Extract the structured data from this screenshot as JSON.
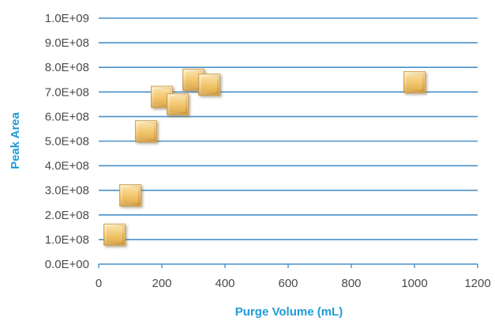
{
  "chart_data": {
    "type": "scatter",
    "title": "",
    "xlabel": "Purge Volume (mL)",
    "ylabel": "Peak Area",
    "xlim": [
      0,
      1200
    ],
    "ylim": [
      0,
      1000000000
    ],
    "x_ticks": [
      0,
      200,
      400,
      600,
      800,
      1000,
      1200
    ],
    "x_tick_labels": [
      "0",
      "200",
      "400",
      "600",
      "800",
      "1000",
      "1200"
    ],
    "y_ticks": [
      0,
      100000000,
      200000000,
      300000000,
      400000000,
      500000000,
      600000000,
      700000000,
      800000000,
      900000000,
      1000000000
    ],
    "y_tick_labels": [
      "0.0E+00",
      "1.0E+08",
      "2.0E+08",
      "3.0E+08",
      "4.0E+08",
      "5.0E+08",
      "6.0E+08",
      "7.0E+08",
      "8.0E+08",
      "9.0E+08",
      "1.0E+09"
    ],
    "grid": {
      "horizontal": true,
      "vertical": false,
      "color": "#4a90c8"
    },
    "legend": "none",
    "marker": {
      "shape": "square",
      "style": "3d-bevel",
      "color": "#f2c56b"
    },
    "series": [
      {
        "points": [
          {
            "x": 50,
            "y": 120000000
          },
          {
            "x": 100,
            "y": 280000000
          },
          {
            "x": 150,
            "y": 540000000
          },
          {
            "x": 200,
            "y": 680000000
          },
          {
            "x": 250,
            "y": 650000000
          },
          {
            "x": 300,
            "y": 750000000
          },
          {
            "x": 350,
            "y": 730000000
          },
          {
            "x": 1000,
            "y": 740000000
          }
        ]
      }
    ]
  }
}
